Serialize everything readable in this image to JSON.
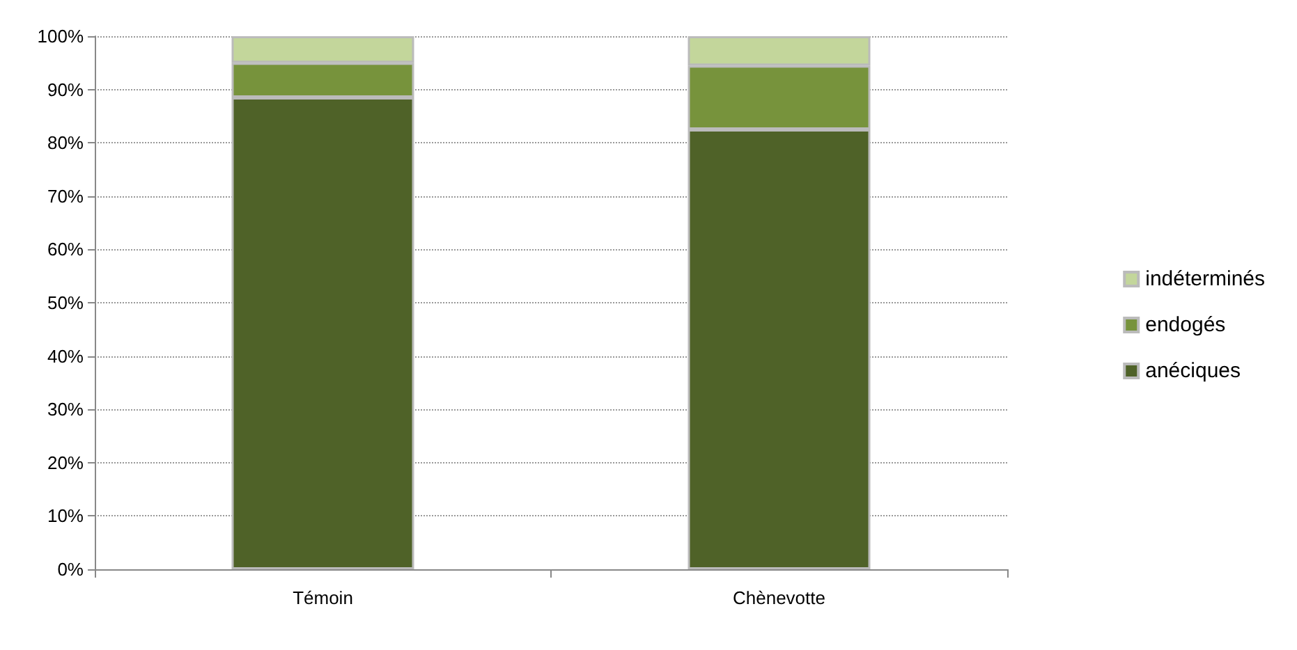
{
  "chart_data": {
    "type": "bar",
    "stacked": true,
    "categories": [
      "Témoin",
      "Chènevotte"
    ],
    "series": [
      {
        "name": "anéciques",
        "color": "#4f6228",
        "values": [
          88.5,
          82.5
        ]
      },
      {
        "name": "endogés",
        "color": "#77933c",
        "values": [
          6.5,
          12
        ]
      },
      {
        "name": "indéterminés",
        "color": "#c3d69b",
        "values": [
          5,
          5.5
        ]
      }
    ],
    "ylim": [
      0,
      100
    ],
    "yticks": [
      {
        "value": 0,
        "label": "0%"
      },
      {
        "value": 10,
        "label": "10%"
      },
      {
        "value": 20,
        "label": "20%"
      },
      {
        "value": 30,
        "label": "30%"
      },
      {
        "value": 40,
        "label": "40%"
      },
      {
        "value": 50,
        "label": "50%"
      },
      {
        "value": 60,
        "label": "60%"
      },
      {
        "value": 70,
        "label": "70%"
      },
      {
        "value": 80,
        "label": "80%"
      },
      {
        "value": 90,
        "label": "90%"
      },
      {
        "value": 100,
        "label": "100%"
      }
    ],
    "grid": "y",
    "legend": "right"
  }
}
